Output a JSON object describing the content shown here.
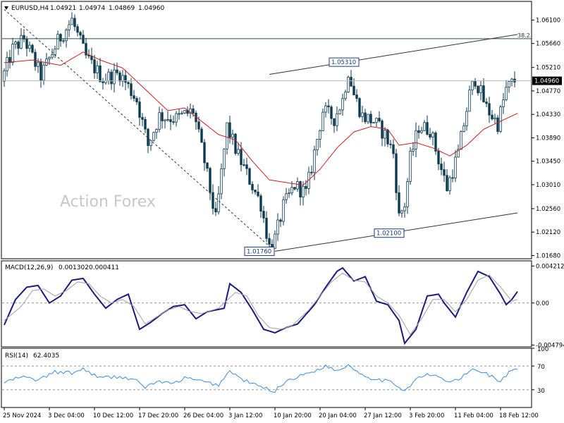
{
  "header": {
    "symbol_label": "EURUSD,H4",
    "ohlc": [
      "1.04921",
      "1.04974",
      "1.04869",
      "1.04960"
    ]
  },
  "watermark": "Action Forex",
  "colors": {
    "candle": "#0d3b4f",
    "sma": "#cc1f1f",
    "macd_main": "#1a1a80",
    "macd_signal": "#a0a0a0",
    "rsi": "#3a8ee0",
    "channel": "#333333",
    "fib": "#1f4f5a"
  },
  "chart_data": [
    {
      "type": "candlestick",
      "title": "EURUSD,H4",
      "y_tick_labels": [
        "1.06100",
        "1.05660",
        "1.05210",
        "1.04770",
        "1.04330",
        "1.03890",
        "1.03450",
        "1.03010",
        "1.02560",
        "1.02120",
        "1.01680"
      ],
      "y_ticks": [
        1.061,
        1.0566,
        1.0521,
        1.0477,
        1.0433,
        1.0389,
        1.0345,
        1.0301,
        1.0256,
        1.0212,
        1.0168
      ],
      "ylim": [
        1.0162,
        1.0645
      ],
      "current_price": 1.0496,
      "current_price_label": "1.04960",
      "x_tick_labels": [
        "25 Nov 2024",
        "3 Dec 04:00",
        "10 Dec 12:00",
        "17 Dec 20:00",
        "26 Dec 04:00",
        "3 Jan 12:00",
        "10 Jan 20:00",
        "20 Jan 04:00",
        "27 Jan 12:00",
        "3 Feb 20:00",
        "11 Feb 04:00",
        "18 Feb 12:00"
      ],
      "x_tick_bars": [
        0,
        16,
        32,
        48,
        64,
        80,
        96,
        112,
        128,
        144,
        160,
        176
      ],
      "bar_count": 182,
      "price_path": [
        [
          0,
          1.0495
        ],
        [
          4,
          1.0555
        ],
        [
          8,
          1.0575
        ],
        [
          14,
          1.0505
        ],
        [
          20,
          1.057
        ],
        [
          25,
          1.061
        ],
        [
          30,
          1.054
        ],
        [
          36,
          1.05
        ],
        [
          42,
          1.051
        ],
        [
          48,
          1.046
        ],
        [
          52,
          1.0375
        ],
        [
          56,
          1.043
        ],
        [
          62,
          1.0425
        ],
        [
          68,
          1.044
        ],
        [
          72,
          1.0345
        ],
        [
          76,
          1.0235
        ],
        [
          80,
          1.041
        ],
        [
          84,
          1.0355
        ],
        [
          88,
          1.031
        ],
        [
          92,
          1.0265
        ],
        [
          95,
          1.0185
        ],
        [
          97,
          1.02
        ],
        [
          100,
          1.026
        ],
        [
          104,
          1.03
        ],
        [
          108,
          1.0285
        ],
        [
          110,
          1.0335
        ],
        [
          114,
          1.044
        ],
        [
          118,
          1.0425
        ],
        [
          121,
          1.046
        ],
        [
          123,
          1.0515
        ],
        [
          125,
          1.047
        ],
        [
          128,
          1.043
        ],
        [
          132,
          1.042
        ],
        [
          136,
          1.0395
        ],
        [
          139,
          1.036
        ],
        [
          141,
          1.024
        ],
        [
          143,
          1.0265
        ],
        [
          145,
          1.035
        ],
        [
          148,
          1.041
        ],
        [
          152,
          1.0405
        ],
        [
          156,
          1.033
        ],
        [
          158,
          1.0295
        ],
        [
          162,
          1.036
        ],
        [
          166,
          1.047
        ],
        [
          168,
          1.05
        ],
        [
          172,
          1.0445
        ],
        [
          176,
          1.0415
        ],
        [
          179,
          1.048
        ],
        [
          182,
          1.0496
        ]
      ],
      "sma_path": [
        [
          0,
          1.053
        ],
        [
          10,
          1.0535
        ],
        [
          20,
          1.0525
        ],
        [
          28,
          1.055
        ],
        [
          34,
          1.0535
        ],
        [
          42,
          1.052
        ],
        [
          50,
          1.048
        ],
        [
          58,
          1.044
        ],
        [
          64,
          1.0445
        ],
        [
          70,
          1.042
        ],
        [
          76,
          1.0395
        ],
        [
          82,
          1.0385
        ],
        [
          88,
          1.0345
        ],
        [
          94,
          1.031
        ],
        [
          100,
          1.0305
        ],
        [
          106,
          1.03
        ],
        [
          112,
          1.033
        ],
        [
          118,
          1.037
        ],
        [
          124,
          1.04
        ],
        [
          130,
          1.041
        ],
        [
          136,
          1.0405
        ],
        [
          140,
          1.0375
        ],
        [
          146,
          1.038
        ],
        [
          152,
          1.037
        ],
        [
          158,
          1.0355
        ],
        [
          164,
          1.0375
        ],
        [
          170,
          1.0405
        ],
        [
          176,
          1.042
        ],
        [
          182,
          1.0435
        ]
      ],
      "levels": [
        {
          "name": "fib_38_2",
          "label": "38.2",
          "value": 1.0575
        }
      ],
      "annotations": [
        {
          "label": "1.05310",
          "bar": 126,
          "value": 1.0531
        },
        {
          "label": "1.02100",
          "bar": 142,
          "value": 1.021
        },
        {
          "label": "1.01760",
          "bar": 96,
          "value": 1.0176
        }
      ],
      "trendlines": [
        {
          "name": "upper-channel",
          "points": [
            [
              94,
              1.0508
            ],
            [
              182,
              1.0583
            ]
          ]
        },
        {
          "name": "lower-channel",
          "points": [
            [
              96,
              1.0176
            ],
            [
              182,
              1.0248
            ]
          ]
        },
        {
          "name": "downtrend",
          "points": [
            [
              0,
              1.063
            ],
            [
              96,
              1.0176
            ]
          ]
        }
      ]
    },
    {
      "type": "line",
      "title": "MACD(12,26,9)",
      "values_label": [
        "0.001302",
        "0.000411"
      ],
      "y_tick_labels": [
        "0.004212",
        "0.00",
        "-0.004794"
      ],
      "y_ticks": [
        0.004212,
        0.0,
        -0.004794
      ],
      "ylim": [
        -0.005,
        0.0048
      ],
      "series": [
        {
          "name": "MACD",
          "values_path": [
            [
              0,
              -0.0025
            ],
            [
              4,
              0.0004
            ],
            [
              8,
              0.0018
            ],
            [
              12,
              0.002
            ],
            [
              16,
              0.0
            ],
            [
              20,
              0.0008
            ],
            [
              24,
              0.0026
            ],
            [
              28,
              0.0028
            ],
            [
              32,
              0.001
            ],
            [
              36,
              -0.0006
            ],
            [
              40,
              0.0004
            ],
            [
              44,
              0.001
            ],
            [
              48,
              -0.003
            ],
            [
              52,
              -0.0022
            ],
            [
              56,
              -0.0012
            ],
            [
              60,
              -0.0004
            ],
            [
              64,
              -0.0002
            ],
            [
              68,
              -0.0018
            ],
            [
              72,
              -0.001
            ],
            [
              78,
              -0.0006
            ],
            [
              80,
              0.0022
            ],
            [
              84,
              0.0012
            ],
            [
              88,
              -0.0008
            ],
            [
              92,
              -0.003
            ],
            [
              96,
              -0.0034
            ],
            [
              100,
              -0.0028
            ],
            [
              104,
              -0.0024
            ],
            [
              110,
              -0.0002
            ],
            [
              114,
              0.0018
            ],
            [
              118,
              0.0036
            ],
            [
              120,
              0.004
            ],
            [
              124,
              0.0025
            ],
            [
              128,
              0.003
            ],
            [
              132,
              0.0002
            ],
            [
              136,
              -0.0002
            ],
            [
              140,
              -0.002
            ],
            [
              142,
              -0.0046
            ],
            [
              146,
              -0.003
            ],
            [
              150,
              0.0008
            ],
            [
              154,
              0.001
            ],
            [
              156,
              0.0
            ],
            [
              160,
              -0.0016
            ],
            [
              164,
              0.0012
            ],
            [
              168,
              0.0036
            ],
            [
              172,
              0.003
            ],
            [
              176,
              0.001
            ],
            [
              178,
              -0.0002
            ],
            [
              180,
              0.0004
            ],
            [
              182,
              0.0013
            ]
          ]
        },
        {
          "name": "Signal",
          "values_path": [
            [
              0,
              -0.002
            ],
            [
              6,
              -0.0004
            ],
            [
              10,
              0.0014
            ],
            [
              14,
              0.0016
            ],
            [
              18,
              0.0008
            ],
            [
              22,
              0.0014
            ],
            [
              26,
              0.0024
            ],
            [
              30,
              0.0022
            ],
            [
              34,
              0.0008
            ],
            [
              38,
              0.0
            ],
            [
              42,
              0.0004
            ],
            [
              46,
              -0.0004
            ],
            [
              50,
              -0.0024
            ],
            [
              54,
              -0.0016
            ],
            [
              58,
              -0.0008
            ],
            [
              62,
              -0.0004
            ],
            [
              66,
              -0.001
            ],
            [
              70,
              -0.0012
            ],
            [
              76,
              -0.0006
            ],
            [
              82,
              0.0012
            ],
            [
              86,
              0.0008
            ],
            [
              90,
              -0.0014
            ],
            [
              94,
              -0.0028
            ],
            [
              98,
              -0.003
            ],
            [
              102,
              -0.0026
            ],
            [
              108,
              -0.0008
            ],
            [
              112,
              0.0008
            ],
            [
              116,
              0.0024
            ],
            [
              120,
              0.0034
            ],
            [
              124,
              0.0026
            ],
            [
              128,
              0.0024
            ],
            [
              132,
              0.0008
            ],
            [
              136,
              0.0
            ],
            [
              140,
              -0.0014
            ],
            [
              144,
              -0.0036
            ],
            [
              148,
              -0.0018
            ],
            [
              152,
              0.0004
            ],
            [
              156,
              0.0004
            ],
            [
              160,
              -0.001
            ],
            [
              164,
              0.0004
            ],
            [
              168,
              0.0026
            ],
            [
              172,
              0.0032
            ],
            [
              176,
              0.0018
            ],
            [
              180,
              0.0002
            ],
            [
              182,
              0.0004
            ]
          ]
        }
      ]
    },
    {
      "type": "line",
      "title": "RSI(14)",
      "value_label": "62.4035",
      "y_tick_labels": [
        "100",
        "70",
        "30",
        "0"
      ],
      "y_ticks": [
        100,
        70,
        30,
        0
      ],
      "levels": [
        70,
        30
      ],
      "ylim": [
        0,
        100
      ],
      "series": [
        {
          "name": "RSI",
          "values_path": [
            [
              0,
              42
            ],
            [
              6,
              52
            ],
            [
              12,
              46
            ],
            [
              18,
              60
            ],
            [
              24,
              58
            ],
            [
              28,
              65
            ],
            [
              34,
              50
            ],
            [
              40,
              52
            ],
            [
              46,
              48
            ],
            [
              50,
              34
            ],
            [
              54,
              44
            ],
            [
              60,
              40
            ],
            [
              64,
              50
            ],
            [
              70,
              44
            ],
            [
              76,
              38
            ],
            [
              80,
              62
            ],
            [
              84,
              48
            ],
            [
              88,
              40
            ],
            [
              94,
              30
            ],
            [
              96,
              28
            ],
            [
              100,
              45
            ],
            [
              106,
              55
            ],
            [
              110,
              62
            ],
            [
              114,
              70
            ],
            [
              118,
              62
            ],
            [
              122,
              72
            ],
            [
              126,
              58
            ],
            [
              130,
              50
            ],
            [
              136,
              44
            ],
            [
              140,
              36
            ],
            [
              142,
              28
            ],
            [
              146,
              48
            ],
            [
              150,
              55
            ],
            [
              154,
              52
            ],
            [
              158,
              42
            ],
            [
              162,
              50
            ],
            [
              166,
              64
            ],
            [
              170,
              60
            ],
            [
              176,
              44
            ],
            [
              180,
              64
            ],
            [
              182,
              62
            ]
          ]
        }
      ]
    }
  ]
}
